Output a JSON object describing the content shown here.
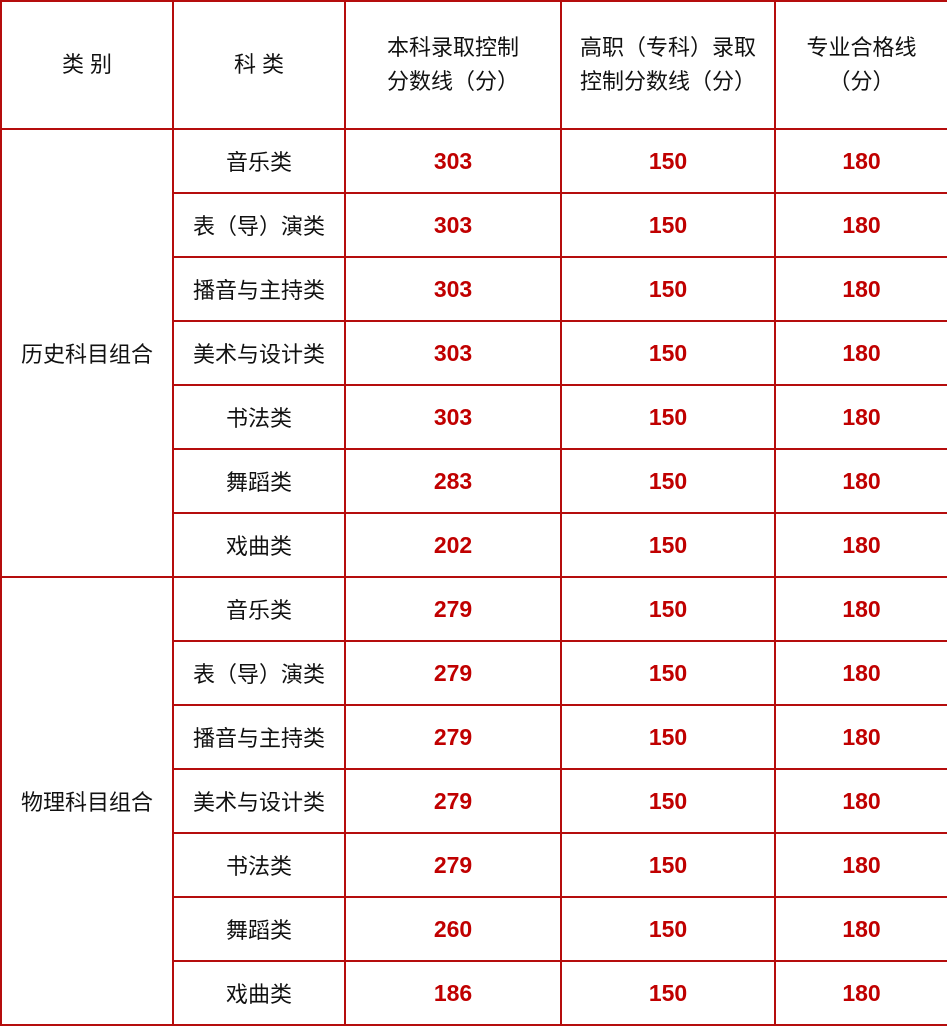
{
  "headers": [
    "类 别",
    "科 类",
    "本科录取控制\n分数线（分）",
    "高职（专科）录取\n控制分数线（分）",
    "专业合格线\n（分）"
  ],
  "groups": [
    {
      "category": "历史科目组合",
      "rows": [
        {
          "subject": "音乐类",
          "bachelor": "303",
          "vocational": "150",
          "qualify": "180"
        },
        {
          "subject": "表（导）演类",
          "bachelor": "303",
          "vocational": "150",
          "qualify": "180"
        },
        {
          "subject": "播音与主持类",
          "bachelor": "303",
          "vocational": "150",
          "qualify": "180"
        },
        {
          "subject": "美术与设计类",
          "bachelor": "303",
          "vocational": "150",
          "qualify": "180"
        },
        {
          "subject": "书法类",
          "bachelor": "303",
          "vocational": "150",
          "qualify": "180"
        },
        {
          "subject": "舞蹈类",
          "bachelor": "283",
          "vocational": "150",
          "qualify": "180"
        },
        {
          "subject": "戏曲类",
          "bachelor": "202",
          "vocational": "150",
          "qualify": "180"
        }
      ]
    },
    {
      "category": "物理科目组合",
      "rows": [
        {
          "subject": "音乐类",
          "bachelor": "279",
          "vocational": "150",
          "qualify": "180"
        },
        {
          "subject": "表（导）演类",
          "bachelor": "279",
          "vocational": "150",
          "qualify": "180"
        },
        {
          "subject": "播音与主持类",
          "bachelor": "279",
          "vocational": "150",
          "qualify": "180"
        },
        {
          "subject": "美术与设计类",
          "bachelor": "279",
          "vocational": "150",
          "qualify": "180"
        },
        {
          "subject": "书法类",
          "bachelor": "279",
          "vocational": "150",
          "qualify": "180"
        },
        {
          "subject": "舞蹈类",
          "bachelor": "260",
          "vocational": "150",
          "qualify": "180"
        },
        {
          "subject": "戏曲类",
          "bachelor": "186",
          "vocational": "150",
          "qualify": "180"
        }
      ]
    }
  ],
  "colors": {
    "border": "#b50d0d",
    "value_text": "#c00000"
  }
}
